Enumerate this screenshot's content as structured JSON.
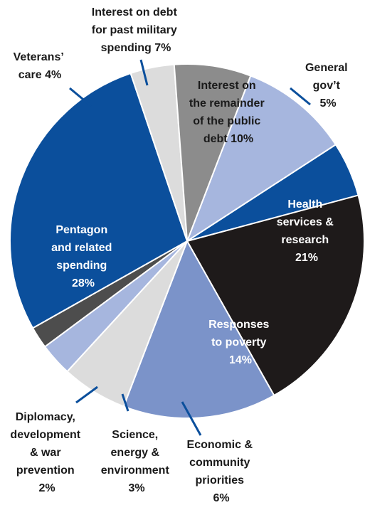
{
  "chart_data": {
    "type": "pie",
    "title": "",
    "slices": [
      {
        "label": "Interest on the remainder of the public debt 10%",
        "value": 10,
        "color": "#a6b6de"
      },
      {
        "label": "General gov't 5%",
        "value": 5,
        "color": "#0b4f9c"
      },
      {
        "label": "Health services & research 21%",
        "value": 21,
        "color": "#1e1a1a"
      },
      {
        "label": "Responses to poverty 14%",
        "value": 14,
        "color": "#7b93c9"
      },
      {
        "label": "Economic & community priorities 6%",
        "value": 6,
        "color": "#dcdcdc"
      },
      {
        "label": "Science, energy & environment 3%",
        "value": 3,
        "color": "#a6b6de"
      },
      {
        "label": "Diplomacy, development & war prevention 2%",
        "value": 2,
        "color": "#4d4d4d"
      },
      {
        "label": "Pentagon and related spending 28%",
        "value": 28,
        "color": "#0b4f9c"
      },
      {
        "label": "Veterans' care 4%",
        "value": 4,
        "color": "#dcdcdc"
      },
      {
        "label": "Interest on debt for past military spending 7%",
        "value": 7,
        "color": "#8c8c8c"
      }
    ]
  },
  "labels": {
    "interest_remainder": [
      "Interest on",
      "the remainder",
      "of the public",
      "debt 10%"
    ],
    "general_govt": [
      "General",
      "gov’t",
      "5%"
    ],
    "health": [
      "Health",
      "services &",
      "research",
      "21%"
    ],
    "poverty": [
      "Responses",
      "to poverty",
      "14%"
    ],
    "economic": [
      "Economic &",
      "community",
      "priorities",
      "6%"
    ],
    "science": [
      "Science,",
      "energy &",
      "environment",
      "3%"
    ],
    "diplomacy": [
      "Diplomacy,",
      "development",
      "& war",
      "prevention",
      "2%"
    ],
    "pentagon": [
      "Pentagon",
      "and related",
      "spending",
      "28%"
    ],
    "veterans": [
      "Veterans’",
      "care 4%"
    ],
    "interest_military": [
      "Interest on debt",
      "for past military",
      "spending 7%"
    ]
  }
}
